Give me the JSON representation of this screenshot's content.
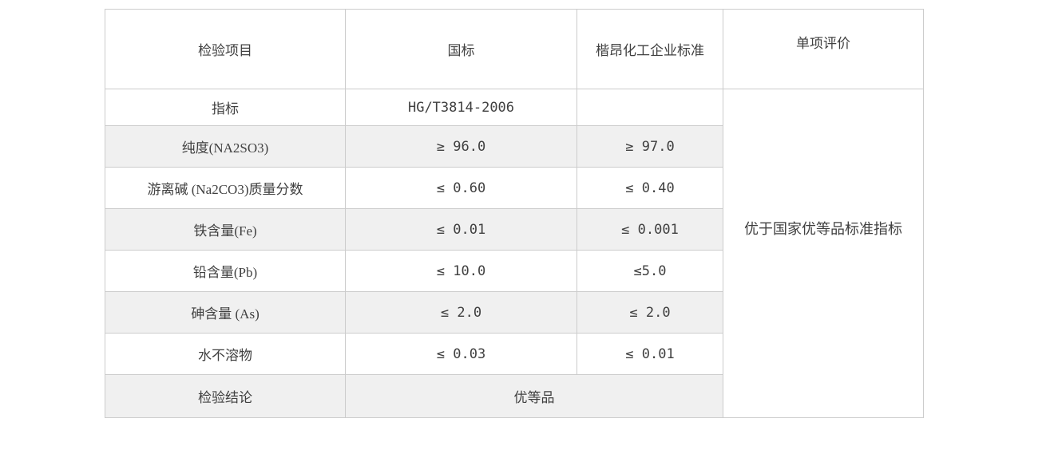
{
  "table": {
    "header": {
      "col_item": "检验项目",
      "col_national": "国标",
      "col_enterprise": "楷昂化工企业标准",
      "col_evaluation": "单项评价"
    },
    "standard_row": {
      "item": "指标",
      "national": "HG/T3814-2006",
      "enterprise": ""
    },
    "rows": [
      {
        "item": "纯度(NA2SO3)",
        "national": "≥ 96.0",
        "enterprise": "≥ 97.0"
      },
      {
        "item": "游离碱 (Na2CO3)质量分数",
        "national": "≤ 0.60",
        "enterprise": "≤ 0.40"
      },
      {
        "item": "铁含量(Fe)",
        "national": "≤ 0.01",
        "enterprise": "≤ 0.001"
      },
      {
        "item": "铅含量(Pb)",
        "national": "≤ 10.0",
        "enterprise": "≤5.0"
      },
      {
        "item": "砷含量 (As)",
        "national": "≤ 2.0",
        "enterprise": "≤ 2.0"
      },
      {
        "item": "水不溶物",
        "national": "≤ 0.03",
        "enterprise": "≤ 0.01"
      }
    ],
    "evaluation_note": "优于国家优等品标准指标",
    "conclusion_row": {
      "item": "检验结论",
      "value": "优等品"
    }
  },
  "colors": {
    "stripe_background": "#f0f0f0",
    "border": "#cccccc",
    "text": "#404040",
    "page_background": "#ffffff"
  }
}
